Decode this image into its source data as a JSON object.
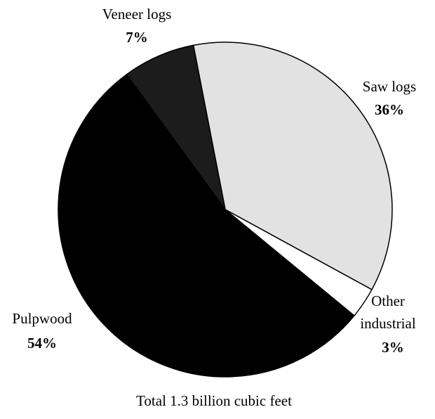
{
  "chart_data": {
    "type": "pie",
    "title": "Total 1.3 billion cubic feet",
    "categories": [
      "Saw logs",
      "Other industrial",
      "Pulpwood",
      "Veneer logs"
    ],
    "values": [
      36,
      3,
      54,
      7
    ],
    "value_labels": [
      "36%",
      "3%",
      "54%",
      "7%"
    ],
    "colors": [
      "#e2e2e2",
      "#ffffff",
      "#000000",
      "#1c1c1c"
    ]
  }
}
